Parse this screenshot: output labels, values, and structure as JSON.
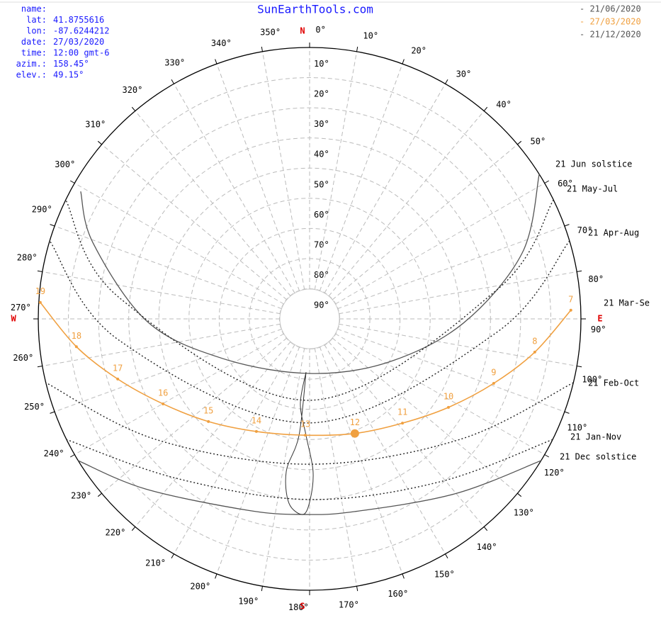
{
  "info": [
    {
      "key": "name:"
    },
    {
      "key": "lat:",
      "value": "41.8755616"
    },
    {
      "key": "lon:",
      "value": "-87.6244212"
    },
    {
      "key": "date:",
      "value": "27/03/2020"
    },
    {
      "key": "time:",
      "value": "12:00 gmt-6"
    },
    {
      "key": "azim.:",
      "value": "158.45°"
    },
    {
      "key": "elev.:",
      "value": "49.15°"
    }
  ],
  "chart_data": {
    "type": "sunpath",
    "title": "SunEarthTools.com",
    "legend": [
      {
        "name": "- 21/06/2020",
        "color": "#555555"
      },
      {
        "name": "- 27/03/2020",
        "color": "#f0a040"
      },
      {
        "name": "- 21/12/2020",
        "color": "#555555"
      }
    ],
    "compass": [
      {
        "label": "N",
        "azimuth": 0
      },
      {
        "label": "E",
        "azimuth": 90
      },
      {
        "label": "S",
        "azimuth": 180
      },
      {
        "label": "W",
        "azimuth": 270
      }
    ],
    "azimuth_ticks": [
      {
        "value": 0,
        "label": "0°"
      },
      {
        "value": 10,
        "label": "10°"
      },
      {
        "value": 20,
        "label": "20°"
      },
      {
        "value": 30,
        "label": "30°"
      },
      {
        "value": 40,
        "label": "40°"
      },
      {
        "value": 50,
        "label": "50°"
      },
      {
        "value": 60,
        "label": "60°"
      },
      {
        "value": 70,
        "label": "70°"
      },
      {
        "value": 80,
        "label": "80°"
      },
      {
        "value": 90,
        "label": "90°"
      },
      {
        "value": 100,
        "label": "100°"
      },
      {
        "value": 110,
        "label": "110°"
      },
      {
        "value": 120,
        "label": "120°"
      },
      {
        "value": 130,
        "label": "130°"
      },
      {
        "value": 140,
        "label": "140°"
      },
      {
        "value": 150,
        "label": "150°"
      },
      {
        "value": 160,
        "label": "160°"
      },
      {
        "value": 170,
        "label": "170°"
      },
      {
        "value": 180,
        "label": "180°"
      },
      {
        "value": 190,
        "label": "190°"
      },
      {
        "value": 200,
        "label": "200°"
      },
      {
        "value": 210,
        "label": "210°"
      },
      {
        "value": 220,
        "label": "220°"
      },
      {
        "value": 230,
        "label": "230°"
      },
      {
        "value": 240,
        "label": "240°"
      },
      {
        "value": 250,
        "label": "250°"
      },
      {
        "value": 260,
        "label": "260°"
      },
      {
        "value": 270,
        "label": "270°"
      },
      {
        "value": 280,
        "label": "280°"
      },
      {
        "value": 290,
        "label": "290°"
      },
      {
        "value": 300,
        "label": "300°"
      },
      {
        "value": 310,
        "label": "310°"
      },
      {
        "value": 320,
        "label": "320°"
      },
      {
        "value": 330,
        "label": "330°"
      },
      {
        "value": 340,
        "label": "340°"
      },
      {
        "value": 350,
        "label": "350°"
      }
    ],
    "elevation_ticks": [
      {
        "value": 10,
        "label": "10°"
      },
      {
        "value": 20,
        "label": "20°"
      },
      {
        "value": 30,
        "label": "30°"
      },
      {
        "value": 40,
        "label": "40°"
      },
      {
        "value": 50,
        "label": "50°"
      },
      {
        "value": 60,
        "label": "60°"
      },
      {
        "value": 70,
        "label": "70°"
      },
      {
        "value": 80,
        "label": "80°"
      },
      {
        "value": 90,
        "label": "90°"
      }
    ],
    "series": [
      {
        "name": "21 Jun  solstice",
        "color": "#555555",
        "style": "solid",
        "azimuth": [
          57.8,
          72.8,
          91.6,
          118.8,
          180,
          245.5,
          269.0,
          289.3,
          299.1
        ],
        "elevation": [
          0,
          16.2,
          39.0,
          60.2,
          71.9,
          58.3,
          36.2,
          13.9,
          3.1
        ]
      },
      {
        "name": "21 May-Jul",
        "color": "#222222",
        "style": "dotted",
        "azimuth": [
          64,
          81.4,
          180,
          276.4,
          296
        ],
        "elevation": [
          0,
          27.5,
          63,
          26.4,
          0
        ]
      },
      {
        "name": "21 Apr-Aug",
        "color": "#222222",
        "style": "dotted",
        "azimuth": [
          73.3,
          94.3,
          180,
          263.6,
          286.7
        ],
        "elevation": [
          0,
          28,
          55.5,
          26.4,
          0
        ]
      },
      {
        "name": "21 Feb-Oct",
        "color": "#222222",
        "style": "dotted",
        "azimuth": [
          103.6,
          128.6,
          180,
          231.9,
          256.4
        ],
        "elevation": [
          0,
          26,
          41.8,
          25.2,
          0
        ]
      },
      {
        "name": "21 Jan-Nov",
        "color": "#222222",
        "style": "dotted",
        "azimuth": [
          116.4,
          141.5,
          180,
          219.7,
          243.6
        ],
        "elevation": [
          0,
          20.9,
          30.1,
          21.2,
          0
        ]
      },
      {
        "name": "21 Dec  solstice",
        "color": "#555555",
        "style": "solid",
        "azimuth": [
          121.5,
          140.3,
          167,
          182.1,
          197.9,
          224,
          238.5
        ],
        "elevation": [
          0,
          14.6,
          24.4,
          25.1,
          23.3,
          11.6,
          0
        ]
      }
    ],
    "date_path": {
      "name": "21 Mar-Se",
      "color": "#f0a040",
      "highlight_hour": 12,
      "hours": [
        7,
        8,
        9,
        10,
        11,
        12,
        13,
        14,
        15,
        16,
        17,
        18,
        19
      ],
      "azimuth": [
        88.1,
        98.4,
        109.3,
        122.5,
        138.3,
        158.45,
        182.1,
        205.3,
        224.6,
        239.9,
        252.6,
        263.2,
        273.5
      ],
      "elevation": [
        3.3,
        14.5,
        25.3,
        35.4,
        43.7,
        49.15,
        51.4,
        48.7,
        42.2,
        33.8,
        23.3,
        12.1,
        0.5
      ]
    },
    "analemma": {
      "color": "#333333",
      "azimuth": [
        183.8,
        186.2,
        181.7,
        178.7,
        179.8,
        181.9,
        186.4,
        188.7,
        185.2,
        183.8
      ],
      "elevation": [
        72.3,
        61.6,
        51.2,
        39.5,
        30.1,
        25.1,
        28.5,
        38.9,
        51.1,
        72.3
      ]
    }
  }
}
